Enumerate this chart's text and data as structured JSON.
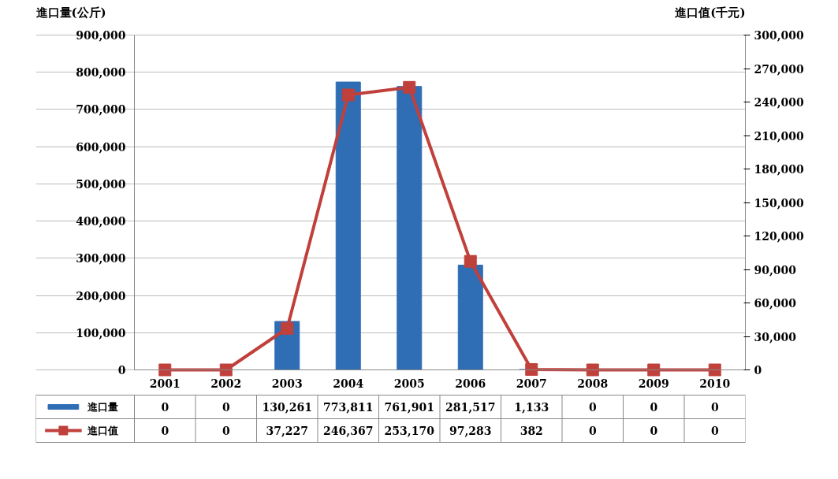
{
  "chart_data": {
    "type": "bar",
    "categories": [
      "2001",
      "2002",
      "2003",
      "2004",
      "2005",
      "2006",
      "2007",
      "2008",
      "2009",
      "2010"
    ],
    "ylabel": "進口量(公斤)",
    "y2label": "進口值(千元)",
    "ylim": [
      0,
      900000
    ],
    "yticks": [
      0,
      {
        "value": 100000,
        "label": "100,000"
      },
      {
        "value": 200000,
        "label": "200,000"
      },
      {
        "value": 300000,
        "label": "300,000"
      },
      {
        "value": 400000,
        "label": "400,000"
      },
      {
        "value": 500000,
        "label": "500,000"
      },
      {
        "value": 600000,
        "label": "600,000"
      },
      {
        "value": 700000,
        "label": "700,000"
      },
      {
        "value": 800000,
        "label": "800,000"
      },
      {
        "value": 900000,
        "label": "900,000"
      }
    ],
    "y2lim": [
      0,
      300000
    ],
    "y2ticks": [
      0,
      {
        "value": 30000,
        "label": "30,000"
      },
      {
        "value": 60000,
        "label": "60,000"
      },
      {
        "value": 90000,
        "label": "90,000"
      },
      {
        "value": 120000,
        "label": "120,000"
      },
      {
        "value": 150000,
        "label": "150,000"
      },
      {
        "value": 180000,
        "label": "180,000"
      },
      {
        "value": 210000,
        "label": "210,000"
      },
      {
        "value": 240000,
        "label": "240,000"
      },
      {
        "value": 270000,
        "label": "270,000"
      },
      {
        "value": 300000,
        "label": "300,000"
      }
    ],
    "grid": "y",
    "legend": "bottom",
    "series": [
      {
        "name": "進口量",
        "color": "#2f6db5",
        "values": [
          0,
          0,
          130261,
          773811,
          761901,
          281517,
          1133,
          0,
          0,
          0
        ],
        "value_labels": [
          "0",
          "0",
          "130,261",
          "773,811",
          "761,901",
          "281,517",
          "1,133",
          "0",
          "0",
          "0"
        ]
      },
      {
        "name": "進口值",
        "type": "line",
        "axis": "y2",
        "color": "#c0403c",
        "marker": "square",
        "line_style": "solid",
        "values": [
          0,
          0,
          37227,
          246367,
          253170,
          97283,
          382,
          0,
          0,
          0
        ],
        "value_labels": [
          "0",
          "0",
          "37,227",
          "246,367",
          "253,170",
          "97,283",
          "382",
          "0",
          "0",
          "0"
        ]
      }
    ]
  }
}
